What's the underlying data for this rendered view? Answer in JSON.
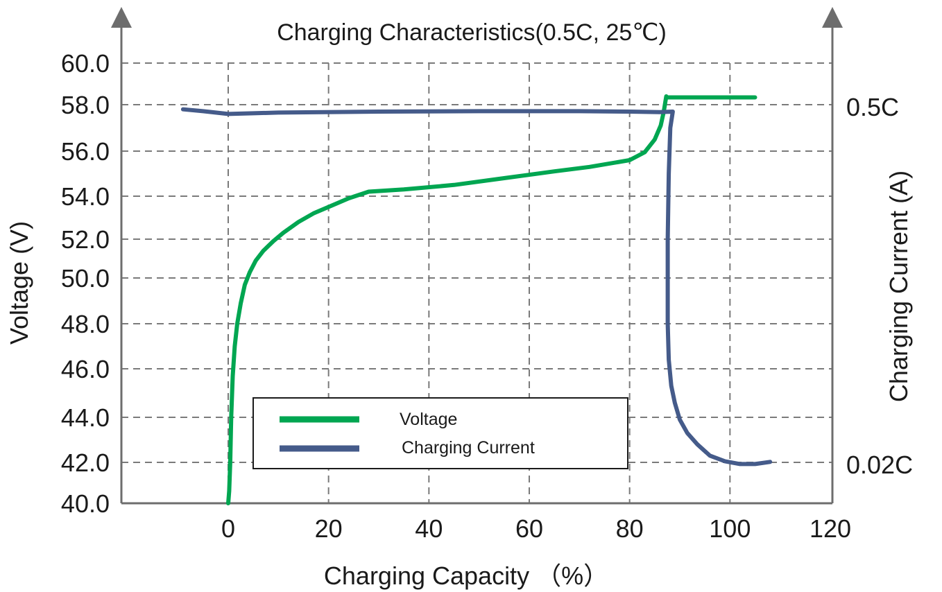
{
  "chart_data": {
    "type": "line",
    "title": "Charging Characteristics(0.5C, 25℃)",
    "xlabel": "Charging Capacity （%）",
    "ylabel": "Voltage (V)",
    "y2label": "Charging Current (A)",
    "xlim": [
      -21,
      121
    ],
    "ylim": [
      40,
      60
    ],
    "x_ticks": [
      0,
      20,
      40,
      60,
      80,
      100,
      120
    ],
    "x_tick_labels": [
      "0",
      "20",
      "40",
      "60",
      "80",
      "100",
      "120"
    ],
    "y_ticks": [
      40,
      42,
      44,
      46,
      48,
      50,
      52,
      54,
      56,
      58,
      60
    ],
    "y_tick_labels": [
      "40.0",
      "42.0",
      "44.0",
      "46.0",
      "48.0",
      "50.0",
      "52.0",
      "54.0",
      "56.0",
      "58.0",
      "60.0"
    ],
    "y2_tick_labels": [
      {
        "label": "0.5C",
        "at_voltage": 58
      },
      {
        "label": "0.02C",
        "at_voltage": 42
      }
    ],
    "grid": true,
    "legend_position": "bottom-center",
    "series": [
      {
        "name": "Voltage",
        "color": "#00a651",
        "x": [
          0,
          0.2,
          0.4,
          0.6,
          0.9,
          1.3,
          1.8,
          2.5,
          3.3,
          4.3,
          5.5,
          7,
          9,
          11,
          14,
          17,
          20,
          24,
          28,
          35,
          45,
          55,
          65,
          72,
          80,
          83,
          85,
          86.2,
          86.8,
          87.1,
          87.3,
          87.4,
          95,
          105
        ],
        "y": [
          40,
          40.6,
          42,
          44,
          45.7,
          47,
          48,
          48.9,
          49.7,
          50.3,
          50.9,
          51.4,
          51.9,
          52.3,
          52.8,
          53.2,
          53.5,
          53.9,
          54.2,
          54.3,
          54.5,
          54.8,
          55.1,
          55.3,
          55.6,
          55.95,
          56.5,
          57.1,
          57.7,
          58.1,
          58.4,
          58.35,
          58.35,
          58.35
        ]
      },
      {
        "name": "Charging Current",
        "color": "#455b8a",
        "x": [
          -9,
          -5,
          0,
          5,
          10,
          30,
          50,
          70,
          80,
          86,
          88.6,
          88.1,
          87.8,
          87.6,
          87.6,
          87.8,
          88.3,
          89,
          90,
          91.5,
          93.5,
          96,
          99,
          102,
          105,
          108
        ],
        "y": [
          57.8,
          57.72,
          57.6,
          57.63,
          57.66,
          57.7,
          57.72,
          57.72,
          57.7,
          57.68,
          57.7,
          57,
          55,
          52,
          48,
          46.4,
          45.3,
          44.6,
          43.9,
          43.3,
          42.8,
          42.3,
          42.05,
          41.92,
          41.92,
          42.02
        ]
      }
    ]
  }
}
